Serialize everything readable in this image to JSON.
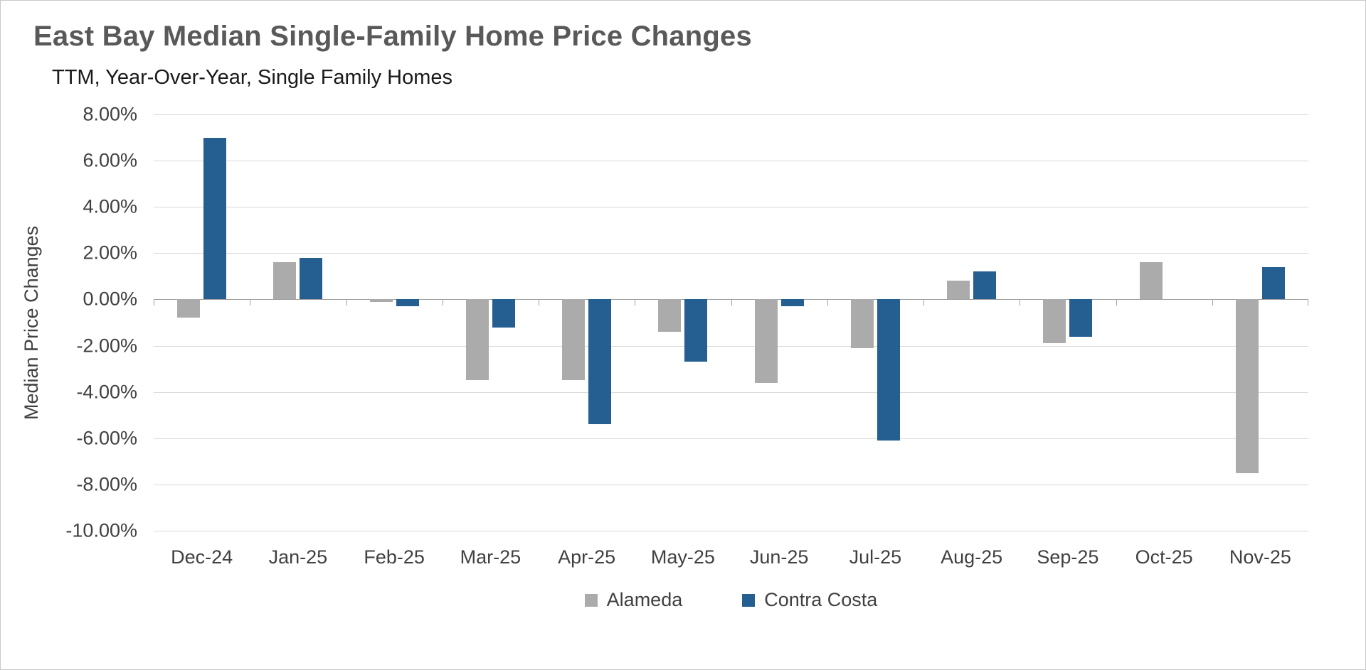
{
  "title": "East Bay Median Single-Family Home Price Changes",
  "subtitle": "TTM, Year-Over-Year, Single Family Homes",
  "chart_data": {
    "type": "bar",
    "categories": [
      "Dec-24",
      "Jan-25",
      "Feb-25",
      "Mar-25",
      "Apr-25",
      "May-25",
      "Jun-25",
      "Jul-25",
      "Aug-25",
      "Sep-25",
      "Oct-25",
      "Nov-25"
    ],
    "series": [
      {
        "name": "Alameda",
        "color": "#ababab",
        "values": [
          -0.8,
          1.6,
          -0.1,
          -3.5,
          -3.5,
          -1.4,
          -3.6,
          -2.1,
          0.8,
          -1.9,
          1.6,
          -7.5
        ]
      },
      {
        "name": "Contra Costa",
        "color": "#255e91",
        "values": [
          7.0,
          1.8,
          -0.3,
          -1.2,
          -5.4,
          -2.7,
          -0.3,
          -6.1,
          1.2,
          -1.6,
          0.0,
          1.4
        ]
      }
    ],
    "ylabel": "Median Price Changes",
    "xlabel": "",
    "ylim": [
      -10,
      8
    ],
    "ytick_step": 2,
    "ytick_format": "0.00%",
    "grid": true,
    "legend_position": "bottom",
    "colors": {
      "gridline": "#d9d9d9",
      "axis_line": "#a0a0a0",
      "title": "#595959",
      "labels": "#404040"
    }
  }
}
